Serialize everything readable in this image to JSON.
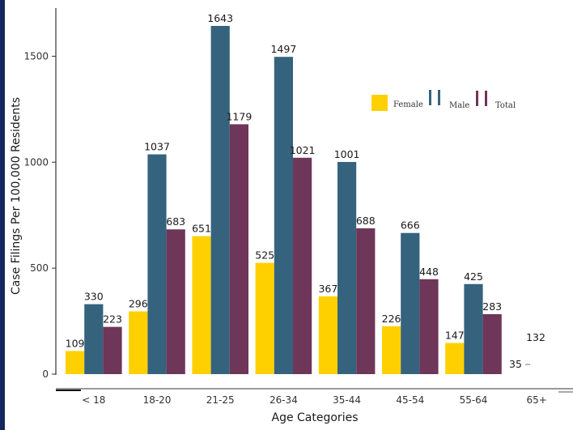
{
  "chart_data": {
    "type": "bar",
    "xlabel": "Age Categories",
    "ylabel": "Case Filings Per 100,000 Residents",
    "ylim": [
      0,
      1650
    ],
    "yticks": [
      0,
      500,
      1000,
      1500
    ],
    "categories": [
      "< 18",
      "18-20",
      "21-25",
      "26-34",
      "35-44",
      "45-54",
      "55-64",
      "65+"
    ],
    "series": [
      {
        "name": "Female",
        "color": "#FFD000",
        "values": [
          109,
          296,
          651,
          525,
          367,
          226,
          147,
          35
        ]
      },
      {
        "name": "Male",
        "color": "#35637E",
        "values": [
          330,
          1037,
          1643,
          1497,
          1001,
          666,
          425,
          132
        ]
      },
      {
        "name": "Total",
        "color": "#6E3659",
        "values": [
          223,
          683,
          1179,
          1021,
          688,
          448,
          283,
          null
        ]
      }
    ],
    "legend_position": "top-right",
    "grid": false
  }
}
